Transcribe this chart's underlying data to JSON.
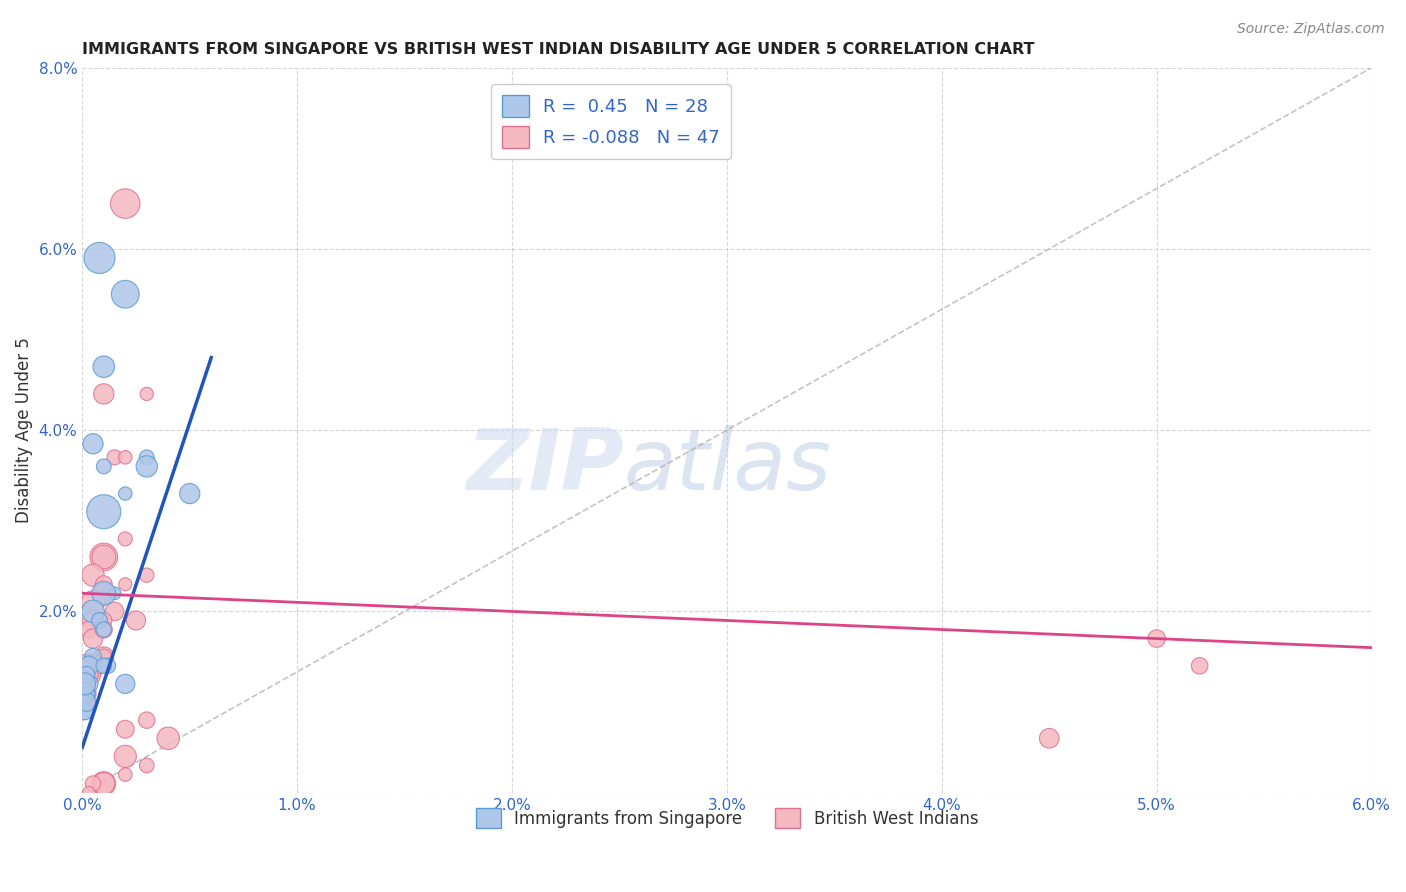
{
  "title": "IMMIGRANTS FROM SINGAPORE VS BRITISH WEST INDIAN DISABILITY AGE UNDER 5 CORRELATION CHART",
  "source": "Source: ZipAtlas.com",
  "ylabel": "Disability Age Under 5",
  "xlim": [
    0.0,
    0.06
  ],
  "ylim": [
    0.0,
    0.08
  ],
  "xticks": [
    0.0,
    0.01,
    0.02,
    0.03,
    0.04,
    0.05,
    0.06
  ],
  "yticks": [
    0.0,
    0.02,
    0.04,
    0.06,
    0.08
  ],
  "xtick_labels": [
    "0.0%",
    "1.0%",
    "2.0%",
    "3.0%",
    "4.0%",
    "5.0%",
    "6.0%"
  ],
  "ytick_labels": [
    "",
    "2.0%",
    "4.0%",
    "6.0%",
    "8.0%"
  ],
  "grid_color": "#cccccc",
  "background_color": "#ffffff",
  "watermark_zip": "ZIP",
  "watermark_atlas": "atlas",
  "singapore_color": "#aec6e8",
  "singapore_edge_color": "#5b9bd5",
  "bwi_color": "#f4b8c1",
  "bwi_edge_color": "#e07090",
  "R_singapore": 0.45,
  "N_singapore": 28,
  "R_bwi": -0.088,
  "N_bwi": 47,
  "legend_label_singapore": "Immigrants from Singapore",
  "legend_label_bwi": "British West Indians",
  "singapore_x": [
    0.0008,
    0.002,
    0.001,
    0.0005,
    0.003,
    0.001,
    0.002,
    0.001,
    0.005,
    0.003,
    0.0015,
    0.001,
    0.0005,
    0.0008,
    0.001,
    0.0012,
    0.0005,
    0.0003,
    0.0003,
    0.0002,
    0.0001,
    0.0001,
    0.0001,
    0.0001,
    0.0002,
    0.0001,
    0.001,
    0.002
  ],
  "singapore_y": [
    0.059,
    0.055,
    0.047,
    0.0385,
    0.037,
    0.036,
    0.033,
    0.031,
    0.033,
    0.036,
    0.022,
    0.022,
    0.02,
    0.019,
    0.018,
    0.014,
    0.015,
    0.014,
    0.012,
    0.013,
    0.011,
    0.01,
    0.009,
    0.009,
    0.01,
    0.012,
    0.014,
    0.012
  ],
  "bwi_x": [
    0.002,
    0.003,
    0.001,
    0.0015,
    0.002,
    0.001,
    0.001,
    0.0005,
    0.001,
    0.002,
    0.001,
    0.0015,
    0.003,
    0.0025,
    0.002,
    0.0005,
    0.001,
    0.0005,
    0.0003,
    0.0005,
    0.001,
    0.001,
    0.0005,
    0.0005,
    0.0003,
    0.0002,
    0.0001,
    0.0001,
    0.0001,
    0.0002,
    0.0001,
    0.001,
    0.002,
    0.003,
    0.004,
    0.05,
    0.052,
    0.045,
    0.003,
    0.002,
    0.002,
    0.001,
    0.001,
    0.0005,
    0.0003,
    0.0001,
    0.0001
  ],
  "bwi_y": [
    0.065,
    0.044,
    0.044,
    0.037,
    0.037,
    0.026,
    0.026,
    0.024,
    0.023,
    0.028,
    0.022,
    0.02,
    0.024,
    0.019,
    0.023,
    0.021,
    0.019,
    0.019,
    0.018,
    0.017,
    0.015,
    0.015,
    0.014,
    0.014,
    0.013,
    0.013,
    0.012,
    0.011,
    0.01,
    0.01,
    0.012,
    0.018,
    0.007,
    0.008,
    0.006,
    0.017,
    0.014,
    0.006,
    0.003,
    0.004,
    0.002,
    0.001,
    0.001,
    0.001,
    0.0,
    0.014,
    0.011
  ],
  "sg_line_x": [
    0.0,
    0.006
  ],
  "sg_line_y": [
    0.005,
    0.048
  ],
  "bwi_line_x": [
    0.0,
    0.06
  ],
  "bwi_line_y": [
    0.022,
    0.016
  ],
  "diag_line_x": [
    0.0,
    0.06
  ],
  "diag_line_y": [
    0.0,
    0.08
  ]
}
